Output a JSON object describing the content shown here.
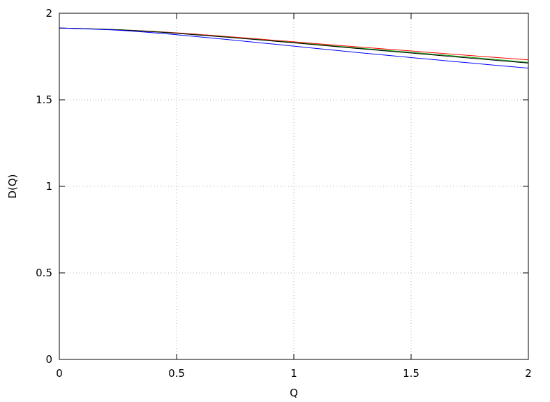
{
  "chart_data": {
    "type": "line",
    "title": "",
    "xlabel": "Q",
    "ylabel": "D(Q)",
    "xlim": [
      0,
      2
    ],
    "ylim": [
      0,
      2
    ],
    "x_ticks": [
      0,
      0.5,
      1,
      1.5,
      2
    ],
    "y_ticks": [
      0,
      0.5,
      1,
      1.5,
      2
    ],
    "x_tick_labels": [
      "0",
      "0.5",
      "1",
      "1.5",
      "2"
    ],
    "y_tick_labels": [
      "0",
      "0.5",
      "1",
      "1.5",
      "2"
    ],
    "grid": true,
    "legend": "none",
    "x": [
      0,
      0.25,
      0.5,
      0.75,
      1.0,
      1.25,
      1.5,
      1.75,
      2.0
    ],
    "series": [
      {
        "color": "#ff0000",
        "values": [
          1.915,
          1.905,
          1.887,
          1.862,
          1.835,
          1.808,
          1.782,
          1.756,
          1.731
        ]
      },
      {
        "color": "#00a000",
        "values": [
          1.915,
          1.905,
          1.885,
          1.859,
          1.831,
          1.802,
          1.774,
          1.746,
          1.716
        ]
      },
      {
        "color": "#000000",
        "values": [
          1.915,
          1.904,
          1.884,
          1.858,
          1.829,
          1.799,
          1.77,
          1.741,
          1.712
        ]
      },
      {
        "color": "#0000ff",
        "values": [
          1.915,
          1.902,
          1.876,
          1.844,
          1.81,
          1.776,
          1.744,
          1.713,
          1.683
        ]
      }
    ]
  }
}
